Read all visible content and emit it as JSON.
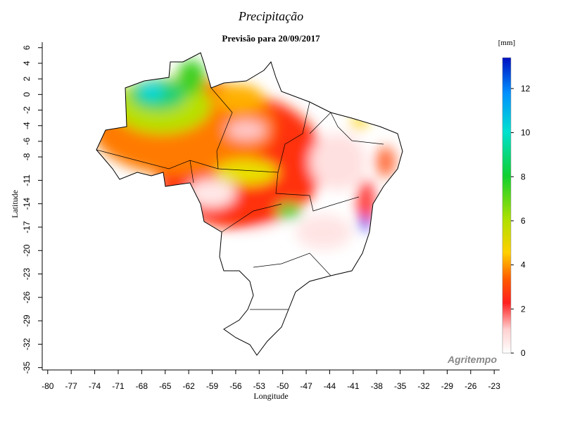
{
  "header": {
    "title": "Precipitação",
    "subtitle": "Previsão para 20/09/2017"
  },
  "map": {
    "xlabel": "Longitude",
    "ylabel": "Latitude",
    "xlim": [
      -80.7,
      -22.3
    ],
    "ylim": [
      -35.3,
      6.7
    ],
    "xticks": [
      -80,
      -77,
      -74,
      -71,
      -68,
      -65,
      -62,
      -59,
      -56,
      -53,
      -50,
      -47,
      -44,
      -41,
      -38,
      -35,
      -32,
      -29,
      -26,
      -23
    ],
    "yticks": [
      6,
      4,
      2,
      0,
      -2,
      -4,
      -6,
      -8,
      -11,
      -14,
      -17,
      -20,
      -23,
      -26,
      -29,
      -32,
      -35
    ]
  },
  "colorbar": {
    "unit": "[mm]",
    "lim": [
      0,
      13.4
    ],
    "ticks": [
      0,
      2,
      4,
      6,
      8,
      10,
      12
    ]
  },
  "watermark": "Agritempo"
}
